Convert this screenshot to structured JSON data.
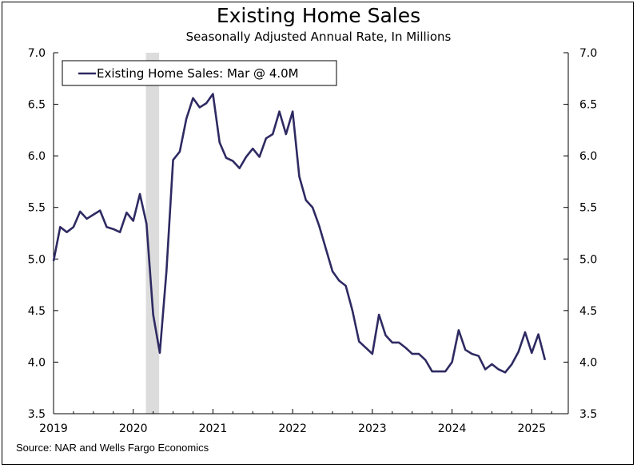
{
  "title": "Existing Home Sales",
  "subtitle": "Seasonally Adjusted Annual Rate, In Millions",
  "source": "Source: NAR and Wells Fargo Economics",
  "colors": {
    "line": "#2e2a62",
    "recession": "#dcdcdc",
    "axis": "#000000"
  },
  "chart_data": {
    "type": "line",
    "title": "Existing Home Sales",
    "subtitle": "Seasonally Adjusted Annual Rate, In Millions",
    "ylim": [
      3.5,
      7.0
    ],
    "yticks": [
      "3.5",
      "4.0",
      "4.5",
      "5.0",
      "5.5",
      "6.0",
      "6.5",
      "7.0"
    ],
    "xticks": [
      "2019",
      "2020",
      "2021",
      "2022",
      "2023",
      "2024",
      "2025"
    ],
    "grid": false,
    "legend_position": "top-left",
    "shaded_period": {
      "start": "2020-03",
      "end": "2020-04"
    },
    "series": [
      {
        "name": "Existing Home Sales: Mar @ 4.0M",
        "x": [
          "2019-01",
          "2019-02",
          "2019-03",
          "2019-04",
          "2019-05",
          "2019-06",
          "2019-07",
          "2019-08",
          "2019-09",
          "2019-10",
          "2019-11",
          "2019-12",
          "2020-01",
          "2020-02",
          "2020-03",
          "2020-04",
          "2020-05",
          "2020-06",
          "2020-07",
          "2020-08",
          "2020-09",
          "2020-10",
          "2020-11",
          "2020-12",
          "2021-01",
          "2021-02",
          "2021-03",
          "2021-04",
          "2021-05",
          "2021-06",
          "2021-07",
          "2021-08",
          "2021-09",
          "2021-10",
          "2021-11",
          "2021-12",
          "2022-01",
          "2022-02",
          "2022-03",
          "2022-04",
          "2022-05",
          "2022-06",
          "2022-07",
          "2022-08",
          "2022-09",
          "2022-10",
          "2022-11",
          "2022-12",
          "2023-01",
          "2023-02",
          "2023-03",
          "2023-04",
          "2023-05",
          "2023-06",
          "2023-07",
          "2023-08",
          "2023-09",
          "2023-10",
          "2023-11",
          "2023-12",
          "2024-01",
          "2024-02",
          "2024-03",
          "2024-04",
          "2024-05",
          "2024-06",
          "2024-07",
          "2024-08",
          "2024-09",
          "2024-10",
          "2024-11",
          "2024-12",
          "2025-01",
          "2025-02",
          "2025-03"
        ],
        "values": [
          4.98,
          5.31,
          5.26,
          5.31,
          5.46,
          5.39,
          5.43,
          5.47,
          5.31,
          5.29,
          5.26,
          5.45,
          5.37,
          5.63,
          5.34,
          4.46,
          4.09,
          4.88,
          5.96,
          6.04,
          6.36,
          6.56,
          6.47,
          6.51,
          6.6,
          6.13,
          5.98,
          5.95,
          5.88,
          5.99,
          6.07,
          5.99,
          6.17,
          6.21,
          6.43,
          6.21,
          6.43,
          5.8,
          5.57,
          5.5,
          5.32,
          5.1,
          4.88,
          4.79,
          4.74,
          4.5,
          4.2,
          4.14,
          4.08,
          4.46,
          4.26,
          4.19,
          4.19,
          4.14,
          4.08,
          4.08,
          4.02,
          3.91,
          3.91,
          3.91,
          4.0,
          4.31,
          4.12,
          4.08,
          4.06,
          3.93,
          3.98,
          3.93,
          3.9,
          3.98,
          4.1,
          4.29,
          4.09,
          4.27,
          4.02
        ]
      }
    ]
  }
}
